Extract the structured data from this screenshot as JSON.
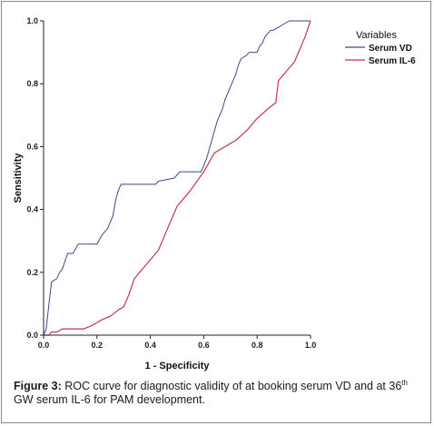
{
  "chart_data": {
    "type": "line",
    "xlabel": "1 - Specificity",
    "ylabel": "Sensitivity",
    "xlim": [
      0,
      1
    ],
    "ylim": [
      0,
      1
    ],
    "xticks": [
      "0.0",
      "0.2",
      "0.4",
      "0.6",
      "0.8",
      "1.0"
    ],
    "yticks": [
      "0.0",
      "0.2",
      "0.4",
      "0.6",
      "0.8",
      "1.0"
    ],
    "grid": false,
    "legend": {
      "title": "Variables",
      "placement": "top-right"
    },
    "series": [
      {
        "name": "Serum VD",
        "color": "#3a4a8c",
        "points": [
          [
            0,
            0
          ],
          [
            0.01,
            0.02
          ],
          [
            0.02,
            0.1
          ],
          [
            0.03,
            0.17
          ],
          [
            0.05,
            0.18
          ],
          [
            0.06,
            0.2
          ],
          [
            0.07,
            0.21
          ],
          [
            0.09,
            0.26
          ],
          [
            0.11,
            0.26
          ],
          [
            0.13,
            0.29
          ],
          [
            0.2,
            0.29
          ],
          [
            0.22,
            0.32
          ],
          [
            0.24,
            0.34
          ],
          [
            0.26,
            0.38
          ],
          [
            0.27,
            0.43
          ],
          [
            0.28,
            0.46
          ],
          [
            0.29,
            0.48
          ],
          [
            0.42,
            0.48
          ],
          [
            0.43,
            0.49
          ],
          [
            0.49,
            0.5
          ],
          [
            0.5,
            0.51
          ],
          [
            0.51,
            0.52
          ],
          [
            0.59,
            0.52
          ],
          [
            0.6,
            0.54
          ],
          [
            0.61,
            0.56
          ],
          [
            0.62,
            0.59
          ],
          [
            0.63,
            0.62
          ],
          [
            0.64,
            0.65
          ],
          [
            0.65,
            0.68
          ],
          [
            0.66,
            0.7
          ],
          [
            0.67,
            0.72
          ],
          [
            0.68,
            0.75
          ],
          [
            0.69,
            0.77
          ],
          [
            0.7,
            0.79
          ],
          [
            0.71,
            0.81
          ],
          [
            0.72,
            0.83
          ],
          [
            0.73,
            0.86
          ],
          [
            0.74,
            0.88
          ],
          [
            0.76,
            0.89
          ],
          [
            0.77,
            0.9
          ],
          [
            0.8,
            0.9
          ],
          [
            0.81,
            0.92
          ],
          [
            0.82,
            0.93
          ],
          [
            0.83,
            0.95
          ],
          [
            0.85,
            0.97
          ],
          [
            0.86,
            0.97
          ],
          [
            0.88,
            0.98
          ],
          [
            0.9,
            0.99
          ],
          [
            0.92,
            1.0
          ],
          [
            1,
            1
          ]
        ]
      },
      {
        "name": "Serum IL-6",
        "color": "#c8334f",
        "points": [
          [
            0,
            0
          ],
          [
            0.02,
            0
          ],
          [
            0.03,
            0.01
          ],
          [
            0.05,
            0.01
          ],
          [
            0.07,
            0.02
          ],
          [
            0.15,
            0.02
          ],
          [
            0.18,
            0.03
          ],
          [
            0.22,
            0.05
          ],
          [
            0.25,
            0.06
          ],
          [
            0.28,
            0.08
          ],
          [
            0.3,
            0.09
          ],
          [
            0.32,
            0.13
          ],
          [
            0.34,
            0.18
          ],
          [
            0.36,
            0.2
          ],
          [
            0.38,
            0.22
          ],
          [
            0.4,
            0.24
          ],
          [
            0.43,
            0.27
          ],
          [
            0.46,
            0.33
          ],
          [
            0.5,
            0.41
          ],
          [
            0.55,
            0.46
          ],
          [
            0.6,
            0.52
          ],
          [
            0.62,
            0.55
          ],
          [
            0.64,
            0.58
          ],
          [
            0.68,
            0.6
          ],
          [
            0.72,
            0.62
          ],
          [
            0.76,
            0.65
          ],
          [
            0.8,
            0.69
          ],
          [
            0.84,
            0.72
          ],
          [
            0.87,
            0.74
          ],
          [
            0.88,
            0.81
          ],
          [
            0.91,
            0.84
          ],
          [
            0.94,
            0.87
          ],
          [
            0.96,
            0.91
          ],
          [
            0.98,
            0.95
          ],
          [
            1,
            1
          ]
        ]
      }
    ]
  },
  "caption": {
    "label": "Figure 3:",
    "text_part1": " ROC curve for diagnostic validity of at booking serum VD and at 36",
    "superscript": "th",
    "text_part2": " GW serum IL-6 for PAM development."
  }
}
